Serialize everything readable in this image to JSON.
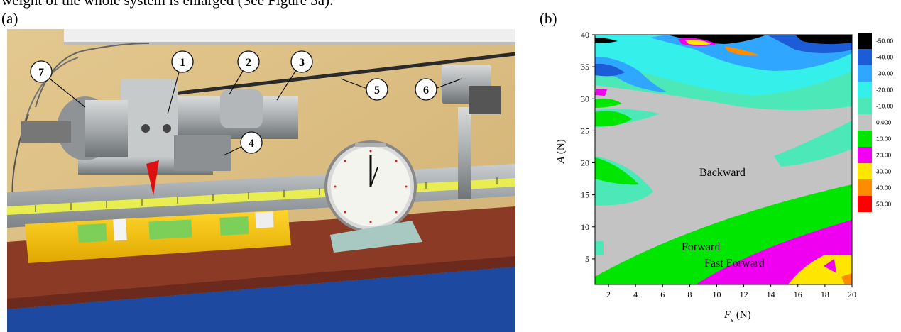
{
  "caption_top": "weight of the whole system is enlarged (See Figure 3a).",
  "panel_a": {
    "label": "(a)",
    "callouts": [
      "1",
      "2",
      "3",
      "4",
      "5",
      "6",
      "7"
    ]
  },
  "panel_b": {
    "label": "(b)",
    "chart_data": {
      "type": "contour",
      "xlabel": "F_s (N)",
      "ylabel": "A (N)",
      "x_ticks": [
        2,
        4,
        6,
        8,
        10,
        12,
        14,
        16,
        18,
        20
      ],
      "y_ticks": [
        5,
        10,
        15,
        20,
        25,
        30,
        35,
        40
      ],
      "xlim": [
        1,
        20
      ],
      "ylim": [
        1,
        40
      ],
      "region_labels": [
        "Backward",
        "Forward",
        "Fast Forward"
      ],
      "legend_levels": [
        "-50.00",
        "-40.00",
        "-30.00",
        "-20.00",
        "-10.00",
        "0.000",
        "10.00",
        "20.00",
        "30.00",
        "40.00",
        "50.00"
      ],
      "legend_colors": [
        "#000000",
        "#1c5cd6",
        "#2fa6ff",
        "#35f0ea",
        "#4ce8b8",
        "#c3c3c3",
        "#00e600",
        "#f000f0",
        "#ffe600",
        "#ff8c00",
        "#ff0000"
      ]
    }
  }
}
